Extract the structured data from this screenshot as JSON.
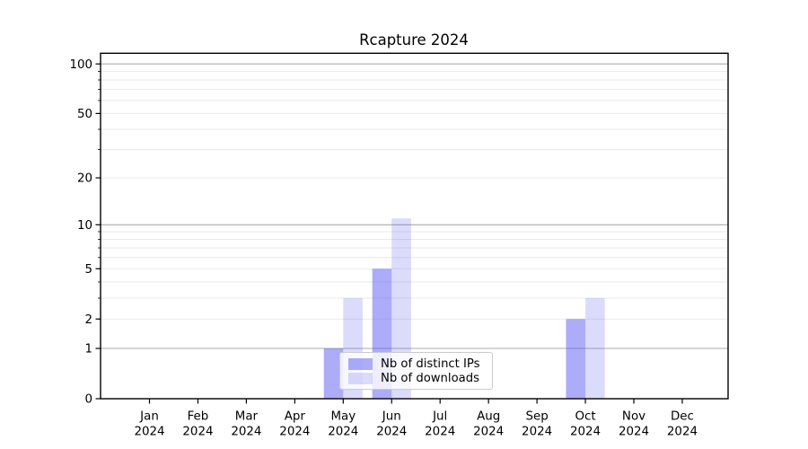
{
  "chart_data": {
    "type": "bar",
    "title": "Rcapture 2024",
    "categories": [
      "Jan",
      "Feb",
      "Mar",
      "Apr",
      "May",
      "Jun",
      "Jul",
      "Aug",
      "Sep",
      "Oct",
      "Nov",
      "Dec"
    ],
    "x_year_label": "2024",
    "series": [
      {
        "name": "Nb of distinct IPs",
        "color": "rgba(86,86,240,0.49)",
        "values": [
          0,
          0,
          0,
          0,
          1,
          5,
          0,
          0,
          0,
          2,
          0,
          0
        ]
      },
      {
        "name": "Nb of downloads",
        "color": "rgba(86,86,240,0.21)",
        "values": [
          0,
          0,
          0,
          0,
          3,
          11,
          0,
          0,
          0,
          3,
          0,
          0
        ]
      }
    ],
    "yscale": "log1p",
    "yticks": [
      0,
      1,
      2,
      5,
      10,
      20,
      50,
      100
    ],
    "ylim": [
      0,
      116
    ],
    "xlabel": "",
    "ylabel": "",
    "grid": {
      "major": [
        1,
        10,
        100
      ],
      "minor": [
        2,
        3,
        4,
        5,
        6,
        7,
        8,
        9,
        20,
        30,
        40,
        50,
        60,
        70,
        80,
        90
      ]
    },
    "legend_position": "lower center inside",
    "colors": {
      "grid_major": "#ababab",
      "grid_minor": "#e9e9e9",
      "spine": "#000000",
      "text": "#000000"
    }
  }
}
